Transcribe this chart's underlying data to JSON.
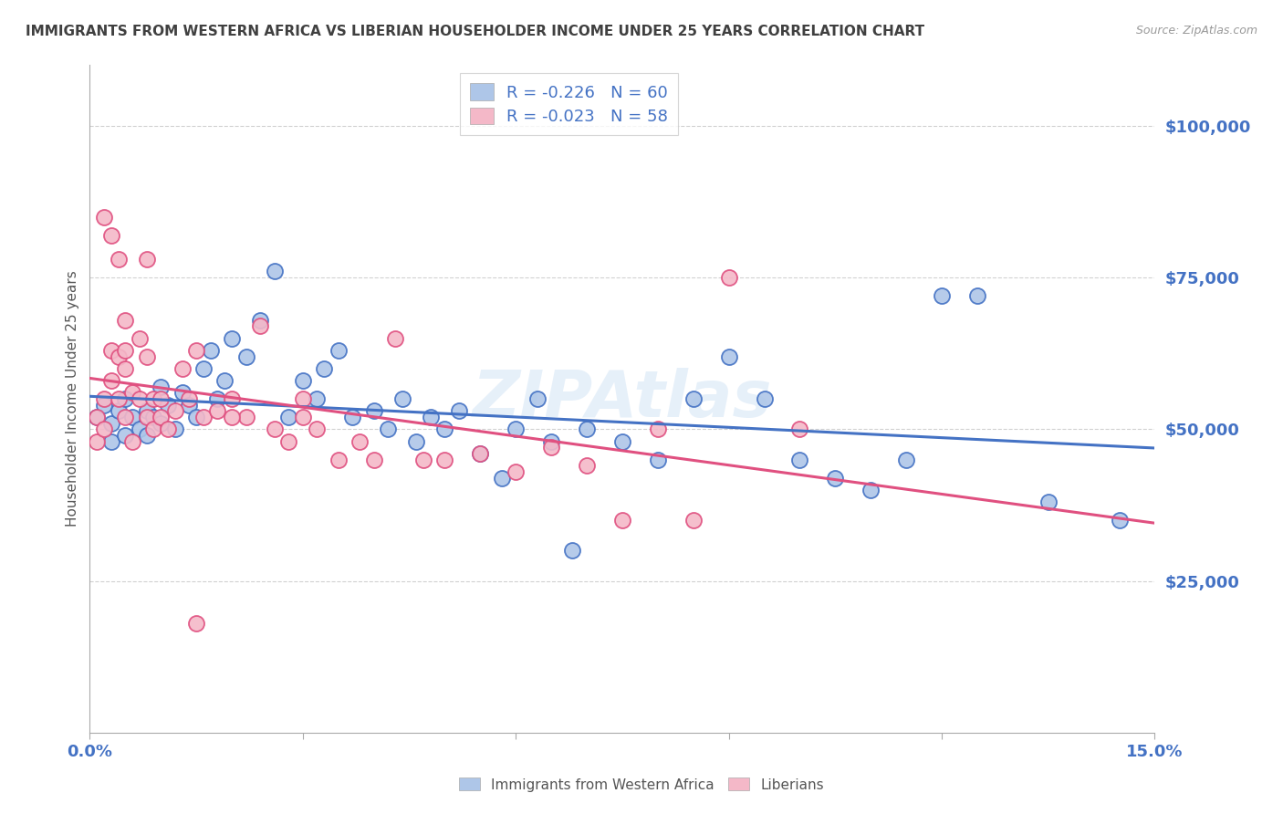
{
  "title": "IMMIGRANTS FROM WESTERN AFRICA VS LIBERIAN HOUSEHOLDER INCOME UNDER 25 YEARS CORRELATION CHART",
  "source": "Source: ZipAtlas.com",
  "ylabel": "Householder Income Under 25 years",
  "xlim": [
    0.0,
    0.15
  ],
  "ylim": [
    0,
    110000
  ],
  "yticks": [
    25000,
    50000,
    75000,
    100000
  ],
  "ytick_labels": [
    "$25,000",
    "$50,000",
    "$75,000",
    "$100,000"
  ],
  "xticks": [
    0.0,
    0.03,
    0.06,
    0.09,
    0.12,
    0.15
  ],
  "xtick_labels": [
    "0.0%",
    "",
    "",
    "",
    "",
    "15.0%"
  ],
  "legend_r1": "-0.226",
  "legend_n1": "60",
  "legend_r2": "-0.023",
  "legend_n2": "58",
  "color_blue": "#aec6e8",
  "color_pink": "#f4b8c8",
  "line_color_blue": "#4472c4",
  "line_color_pink": "#e05080",
  "background_color": "#ffffff",
  "grid_color": "#cccccc",
  "title_color": "#404040",
  "axis_label_color": "#4472c4",
  "watermark": "ZIPAtlas",
  "blue_x": [
    0.001,
    0.002,
    0.003,
    0.003,
    0.004,
    0.005,
    0.005,
    0.006,
    0.007,
    0.008,
    0.008,
    0.009,
    0.01,
    0.01,
    0.011,
    0.012,
    0.013,
    0.014,
    0.015,
    0.016,
    0.017,
    0.018,
    0.019,
    0.02,
    0.022,
    0.024,
    0.026,
    0.028,
    0.03,
    0.032,
    0.033,
    0.035,
    0.037,
    0.04,
    0.042,
    0.044,
    0.046,
    0.048,
    0.05,
    0.052,
    0.055,
    0.058,
    0.06,
    0.063,
    0.065,
    0.068,
    0.07,
    0.075,
    0.08,
    0.085,
    0.09,
    0.095,
    0.1,
    0.105,
    0.11,
    0.115,
    0.12,
    0.125,
    0.135,
    0.145
  ],
  "blue_y": [
    52000,
    54000,
    51000,
    48000,
    53000,
    55000,
    49000,
    52000,
    50000,
    53000,
    49000,
    52000,
    57000,
    51000,
    54000,
    50000,
    56000,
    54000,
    52000,
    60000,
    63000,
    55000,
    58000,
    65000,
    62000,
    68000,
    76000,
    52000,
    58000,
    55000,
    60000,
    63000,
    52000,
    53000,
    50000,
    55000,
    48000,
    52000,
    50000,
    53000,
    46000,
    42000,
    50000,
    55000,
    48000,
    30000,
    50000,
    48000,
    45000,
    55000,
    62000,
    55000,
    45000,
    42000,
    40000,
    45000,
    72000,
    72000,
    38000,
    35000
  ],
  "pink_x": [
    0.001,
    0.001,
    0.002,
    0.002,
    0.003,
    0.003,
    0.004,
    0.004,
    0.005,
    0.005,
    0.005,
    0.006,
    0.006,
    0.007,
    0.007,
    0.008,
    0.008,
    0.009,
    0.009,
    0.01,
    0.01,
    0.011,
    0.012,
    0.013,
    0.014,
    0.015,
    0.016,
    0.018,
    0.02,
    0.022,
    0.024,
    0.026,
    0.028,
    0.03,
    0.032,
    0.035,
    0.038,
    0.04,
    0.043,
    0.047,
    0.05,
    0.055,
    0.06,
    0.065,
    0.07,
    0.075,
    0.08,
    0.085,
    0.09,
    0.1,
    0.002,
    0.003,
    0.004,
    0.005,
    0.008,
    0.015,
    0.02,
    0.03
  ],
  "pink_y": [
    52000,
    48000,
    55000,
    50000,
    63000,
    58000,
    62000,
    55000,
    63000,
    60000,
    52000,
    56000,
    48000,
    65000,
    55000,
    62000,
    52000,
    55000,
    50000,
    55000,
    52000,
    50000,
    53000,
    60000,
    55000,
    63000,
    52000,
    53000,
    55000,
    52000,
    67000,
    50000,
    48000,
    55000,
    50000,
    45000,
    48000,
    45000,
    65000,
    45000,
    45000,
    46000,
    43000,
    47000,
    44000,
    35000,
    50000,
    35000,
    75000,
    50000,
    85000,
    82000,
    78000,
    68000,
    78000,
    18000,
    52000,
    52000
  ]
}
